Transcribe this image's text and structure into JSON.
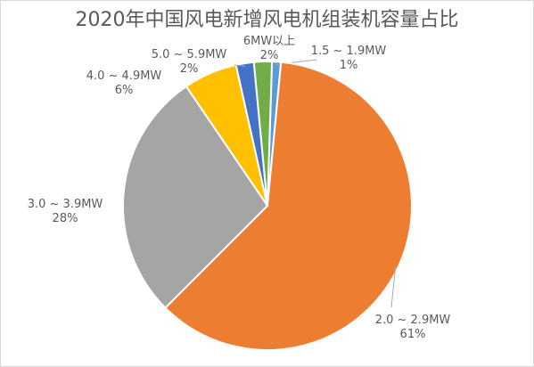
{
  "chart_data": {
    "type": "pie",
    "title": "2020年中国风电新增风电机组装机容量占比",
    "slices": [
      {
        "label": "1.5 ~ 1.9MW",
        "percent_label": "1%",
        "value": 1,
        "color": "#5b9bd5"
      },
      {
        "label": "2.0 ~ 2.9MW",
        "percent_label": "61%",
        "value": 61,
        "color": "#ed7d31"
      },
      {
        "label": "3.0 ~ 3.9MW",
        "percent_label": "28%",
        "value": 28,
        "color": "#a5a5a5"
      },
      {
        "label": "4.0 ~ 4.9MW",
        "percent_label": "6%",
        "value": 6,
        "color": "#ffc000"
      },
      {
        "label": "5.0 ~ 5.9MW",
        "percent_label": "2%",
        "value": 2,
        "color": "#4472c4"
      },
      {
        "label": "6MW以上",
        "percent_label": "2%",
        "value": 2,
        "color": "#70ad47"
      }
    ]
  }
}
